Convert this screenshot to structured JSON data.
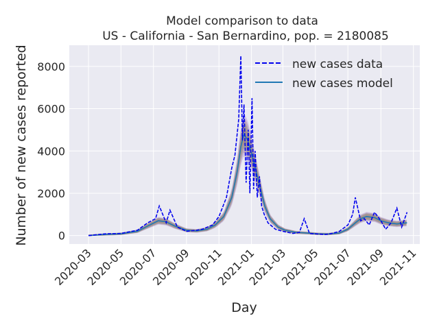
{
  "chart_data": {
    "type": "line",
    "title": "Model comparison to data",
    "subtitle": "US - California - San Bernardino, pop. = 2180085",
    "xlabel": "Day",
    "ylabel": "Number of new cases reported",
    "xlim": [
      "2020-01-25",
      "2021-11-13"
    ],
    "ylim": [
      -400,
      9000
    ],
    "x_ticks": [
      "2020-03",
      "2020-05",
      "2020-07",
      "2020-09",
      "2020-11",
      "2021-01",
      "2021-03",
      "2021-05",
      "2021-07",
      "2021-09",
      "2021-11"
    ],
    "y_ticks": [
      0,
      2000,
      4000,
      6000,
      8000
    ],
    "grid": true,
    "legend_position": "top-right",
    "series": [
      {
        "name": "new cases data",
        "style": "dashed",
        "color": "#0000ee",
        "x": [
          "2020-03-01",
          "2020-04-01",
          "2020-05-01",
          "2020-06-01",
          "2020-06-20",
          "2020-07-05",
          "2020-07-12",
          "2020-07-25",
          "2020-08-01",
          "2020-08-15",
          "2020-09-01",
          "2020-09-20",
          "2020-10-01",
          "2020-10-20",
          "2020-11-01",
          "2020-11-15",
          "2020-11-25",
          "2020-12-01",
          "2020-12-08",
          "2020-12-12",
          "2020-12-15",
          "2020-12-18",
          "2020-12-22",
          "2020-12-26",
          "2020-12-29",
          "2021-01-02",
          "2021-01-05",
          "2021-01-08",
          "2021-01-12",
          "2021-01-16",
          "2021-01-20",
          "2021-01-25",
          "2021-02-01",
          "2021-02-15",
          "2021-03-01",
          "2021-03-20",
          "2021-04-01",
          "2021-04-10",
          "2021-04-20",
          "2021-05-01",
          "2021-05-20",
          "2021-06-01",
          "2021-06-15",
          "2021-07-01",
          "2021-07-10",
          "2021-07-15",
          "2021-07-25",
          "2021-08-01",
          "2021-08-10",
          "2021-08-20",
          "2021-09-01",
          "2021-09-10",
          "2021-09-20",
          "2021-10-01",
          "2021-10-10",
          "2021-10-20"
        ],
        "y": [
          0,
          80,
          100,
          250,
          600,
          800,
          1400,
          600,
          1200,
          400,
          200,
          250,
          300,
          500,
          900,
          1800,
          3200,
          3800,
          5500,
          8500,
          4500,
          6200,
          2500,
          5000,
          2000,
          6500,
          2200,
          4000,
          1800,
          2800,
          1400,
          1000,
          600,
          300,
          200,
          100,
          150,
          800,
          100,
          80,
          50,
          100,
          200,
          500,
          1000,
          1800,
          700,
          800,
          500,
          1100,
          700,
          300,
          600,
          1300,
          400,
          1100
        ]
      },
      {
        "name": "new cases model",
        "style": "solid",
        "color": "#1f77b4",
        "x": [
          "2020-03-01",
          "2020-04-01",
          "2020-05-01",
          "2020-06-01",
          "2020-06-20",
          "2020-07-10",
          "2020-07-25",
          "2020-08-10",
          "2020-09-01",
          "2020-09-20",
          "2020-10-10",
          "2020-10-25",
          "2020-11-10",
          "2020-11-25",
          "2020-12-05",
          "2020-12-12",
          "2020-12-18",
          "2020-12-25",
          "2021-01-02",
          "2021-01-10",
          "2021-01-18",
          "2021-01-26",
          "2021-02-05",
          "2021-02-20",
          "2021-03-05",
          "2021-03-25",
          "2021-04-15",
          "2021-05-05",
          "2021-05-25",
          "2021-06-15",
          "2021-07-01",
          "2021-07-15",
          "2021-07-25",
          "2021-08-05",
          "2021-08-20",
          "2021-09-01",
          "2021-09-15",
          "2021-10-01",
          "2021-10-20"
        ],
        "y": [
          0,
          50,
          80,
          200,
          450,
          700,
          650,
          450,
          250,
          220,
          300,
          500,
          900,
          1800,
          3000,
          4200,
          4800,
          4500,
          3800,
          3000,
          2200,
          1400,
          800,
          400,
          250,
          150,
          120,
          80,
          70,
          120,
          300,
          600,
          800,
          900,
          850,
          700,
          600,
          550,
          600
        ]
      }
    ]
  }
}
